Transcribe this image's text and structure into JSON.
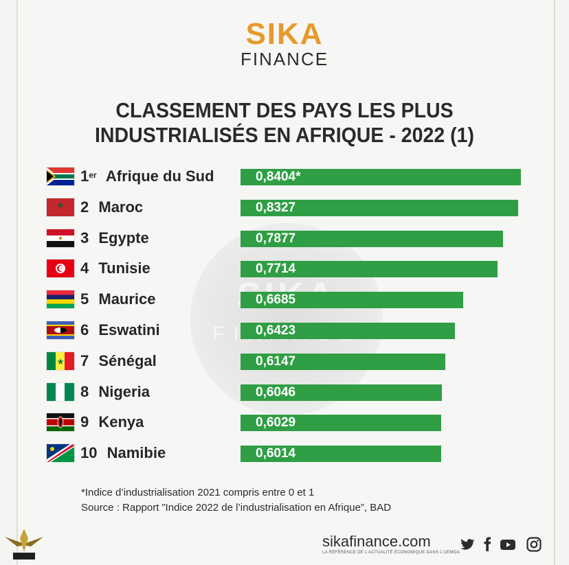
{
  "logo": {
    "top": "SIKA",
    "bottom": "FINANCE"
  },
  "title_line1": "CLASSEMENT DES PAYS LES PLUS",
  "title_line2": "INDUSTRIALISÉS EN AFRIQUE - 2022 (1)",
  "watermark": {
    "top": "SIKA",
    "bottom": "FINANCE"
  },
  "colors": {
    "bar": "#2f9e44",
    "logo_accent": "#e59a2b",
    "text": "#262626"
  },
  "chart_data": {
    "type": "bar",
    "orientation": "horizontal",
    "title": "CLASSEMENT DES PAYS LES PLUS INDUSTRIALISÉS EN AFRIQUE - 2022 (1)",
    "categories": [
      "Afrique du Sud",
      "Maroc",
      "Egypte",
      "Tunisie",
      "Maurice",
      "Eswatini",
      "Sénégal",
      "Nigeria",
      "Kenya",
      "Namibie"
    ],
    "ranks": [
      "1",
      "2",
      "3",
      "4",
      "5",
      "6",
      "7",
      "8",
      "9",
      "10"
    ],
    "rank_suffix_first": "er",
    "values": [
      0.8404,
      0.8327,
      0.7877,
      0.7714,
      0.6685,
      0.6423,
      0.6147,
      0.6046,
      0.6029,
      0.6014
    ],
    "value_labels": [
      "0,8404*",
      "0,8327",
      "0,7877",
      "0,7714",
      "0,6685",
      "0,6423",
      "0,6147",
      "0,6046",
      "0,6029",
      "0,6014"
    ],
    "flags": [
      "south-africa-flag",
      "morocco-flag",
      "egypt-flag",
      "tunisia-flag",
      "mauritius-flag",
      "eswatini-flag",
      "senegal-flag",
      "nigeria-flag",
      "kenya-flag",
      "namibia-flag"
    ],
    "xlim": [
      0,
      1
    ]
  },
  "notes": {
    "line1": "*Indice d’industrialisation 2021 compris entre 0 et 1",
    "line2": "Source : Rapport ”Indice 2022 de l’industrialisation en Afrique”, BAD"
  },
  "footer": {
    "site": "sikafinance.com",
    "tagline": "LA RÉFÉRENCE DE L'ACTUALITÉ ÉCONOMIQUE DANS L'UEMOA",
    "social": [
      "twitter-icon",
      "facebook-icon",
      "youtube-icon",
      "instagram-icon"
    ]
  }
}
